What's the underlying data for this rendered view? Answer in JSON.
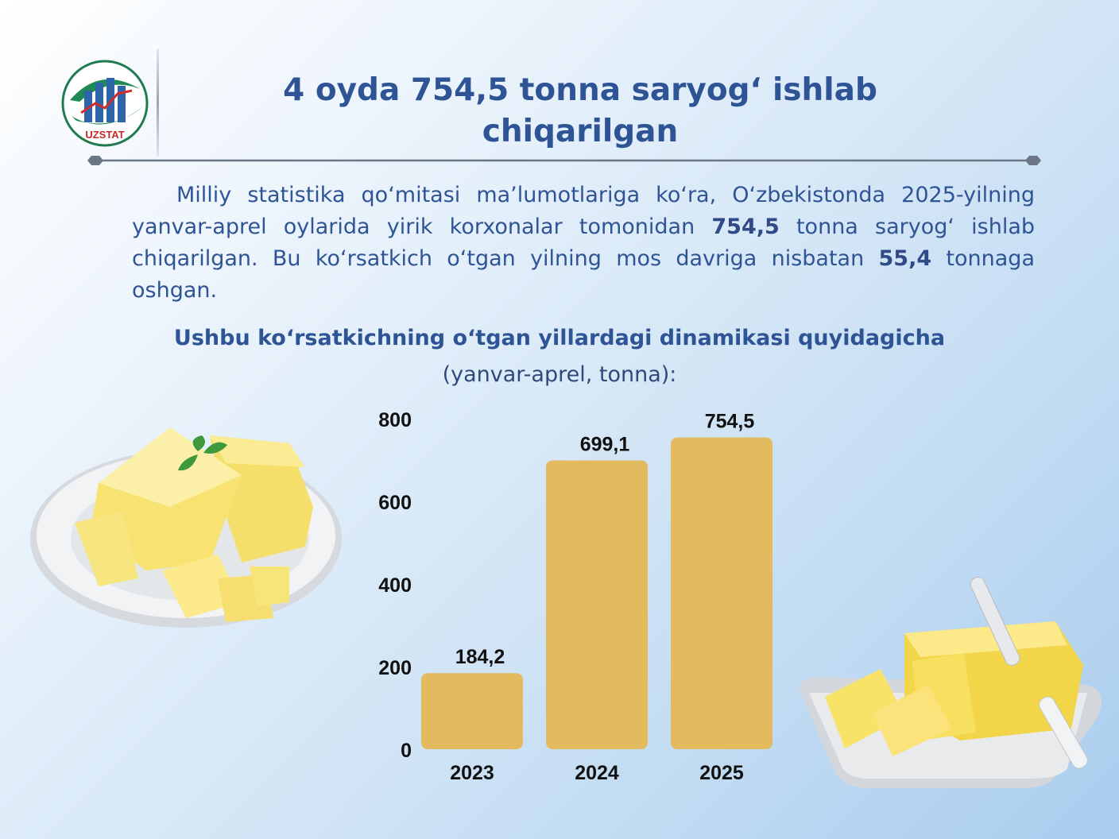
{
  "logo": {
    "text": "UZSTAT",
    "icon": "uzstat-logo-icon"
  },
  "header": {
    "title_line1": "4 oyda 754,5 tonna saryog‘ ishlab",
    "title_line2": "chiqarilgan"
  },
  "intro": {
    "part1": "Milliy statistika qo‘mitasi ma’lumotlariga ko‘ra, O‘zbekistonda 2025-yilning yanvar-aprel oylarida yirik korxonalar tomonidan ",
    "value1": "754,5",
    "part2": " tonna saryog‘ ishlab chiqarilgan. Bu ko‘rsatkich o‘tgan yilning mos davriga nisbatan ",
    "value2": "55,4",
    "part3": " tonnaga oshgan."
  },
  "chart_heading": {
    "title": "Ushbu ko‘rsatkichning o‘tgan yillardagi dinamikasi quyidagicha",
    "subtitle": "(yanvar-aprel, tonna):"
  },
  "chart_data": {
    "type": "bar",
    "categories": [
      "2023",
      "2024",
      "2025"
    ],
    "values": [
      184.2,
      699.1,
      754.5
    ],
    "value_labels": [
      "184,2",
      "699,1",
      "754,5"
    ],
    "ylim": [
      0,
      800
    ],
    "yticks": [
      0,
      200,
      400,
      600,
      800
    ],
    "grid": false,
    "bar_color": "#e3bb5e"
  },
  "images": {
    "left": "butter-on-plate-image",
    "right": "butter-with-knife-image"
  }
}
